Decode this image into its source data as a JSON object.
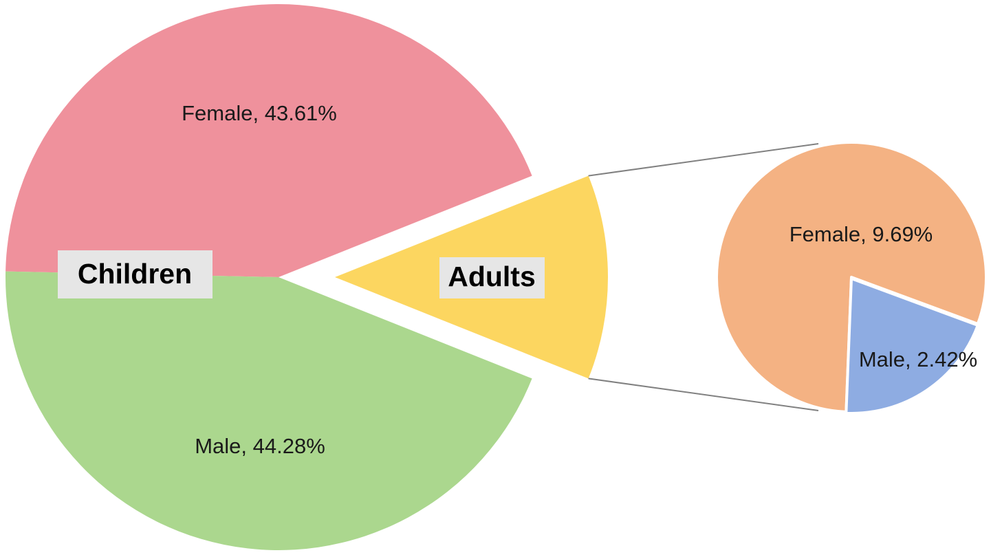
{
  "chart_data": {
    "type": "pie",
    "subtype": "pie-of-pie",
    "main_pie": {
      "slices": [
        {
          "key": "children_female",
          "label": "Female, 43.61%",
          "name": "Female",
          "value": 43.61,
          "group": "Children",
          "color": "#ef919c"
        },
        {
          "key": "children_male",
          "label": "Male, 44.28%",
          "name": "Male",
          "value": 44.28,
          "group": "Children",
          "color": "#abd78e"
        },
        {
          "key": "adults",
          "label": "",
          "name": "Adults",
          "value": 12.11,
          "group": "Adults",
          "color": "#fcd660",
          "exploded": true
        }
      ],
      "group_labels": [
        "Children",
        "Adults"
      ]
    },
    "secondary_pie": {
      "parent": "Adults",
      "slices": [
        {
          "key": "adults_female",
          "label": "Female, 9.69%",
          "name": "Female",
          "value": 9.69,
          "color": "#f4b283"
        },
        {
          "key": "adults_male",
          "label": "Male, 2.42%",
          "name": "Male",
          "value": 2.42,
          "color": "#8eace2"
        }
      ]
    },
    "title": "",
    "legend": "none"
  }
}
